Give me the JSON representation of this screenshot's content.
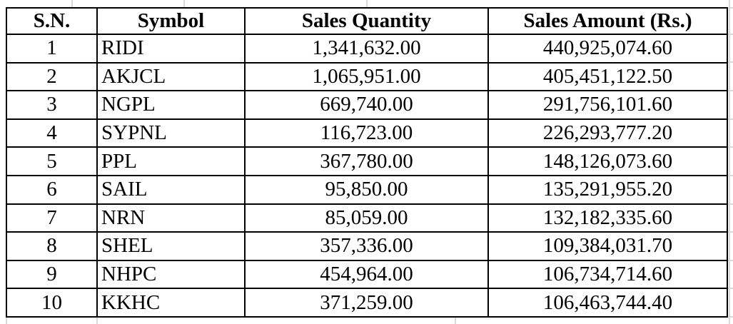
{
  "colors": {
    "background": "#ffffff",
    "text": "#000000",
    "table_border": "#000000",
    "faint_gridline": "#d9d9d9"
  },
  "table": {
    "columns": [
      {
        "key": "sn",
        "label": "S.N."
      },
      {
        "key": "symbol",
        "label": "Symbol"
      },
      {
        "key": "quantity",
        "label": "Sales Quantity"
      },
      {
        "key": "amount",
        "label": "Sales Amount (Rs.)"
      }
    ],
    "rows": [
      {
        "sn": "1",
        "symbol": "RIDI",
        "quantity": "1,341,632.00",
        "amount": "440,925,074.60"
      },
      {
        "sn": "2",
        "symbol": "AKJCL",
        "quantity": "1,065,951.00",
        "amount": "405,451,122.50"
      },
      {
        "sn": "3",
        "symbol": "NGPL",
        "quantity": "669,740.00",
        "amount": "291,756,101.60"
      },
      {
        "sn": "4",
        "symbol": "SYPNL",
        "quantity": "116,723.00",
        "amount": "226,293,777.20"
      },
      {
        "sn": "5",
        "symbol": "PPL",
        "quantity": "367,780.00",
        "amount": "148,126,073.60"
      },
      {
        "sn": "6",
        "symbol": "SAIL",
        "quantity": "95,850.00",
        "amount": "135,291,955.20"
      },
      {
        "sn": "7",
        "symbol": "NRN",
        "quantity": "85,059.00",
        "amount": "132,182,335.60"
      },
      {
        "sn": "8",
        "symbol": "SHEL",
        "quantity": "357,336.00",
        "amount": "109,384,031.70"
      },
      {
        "sn": "9",
        "symbol": "NHPC",
        "quantity": "454,964.00",
        "amount": "106,734,714.60"
      },
      {
        "sn": "10",
        "symbol": "KKHC",
        "quantity": "371,259.00",
        "amount": "106,463,744.40"
      }
    ]
  }
}
